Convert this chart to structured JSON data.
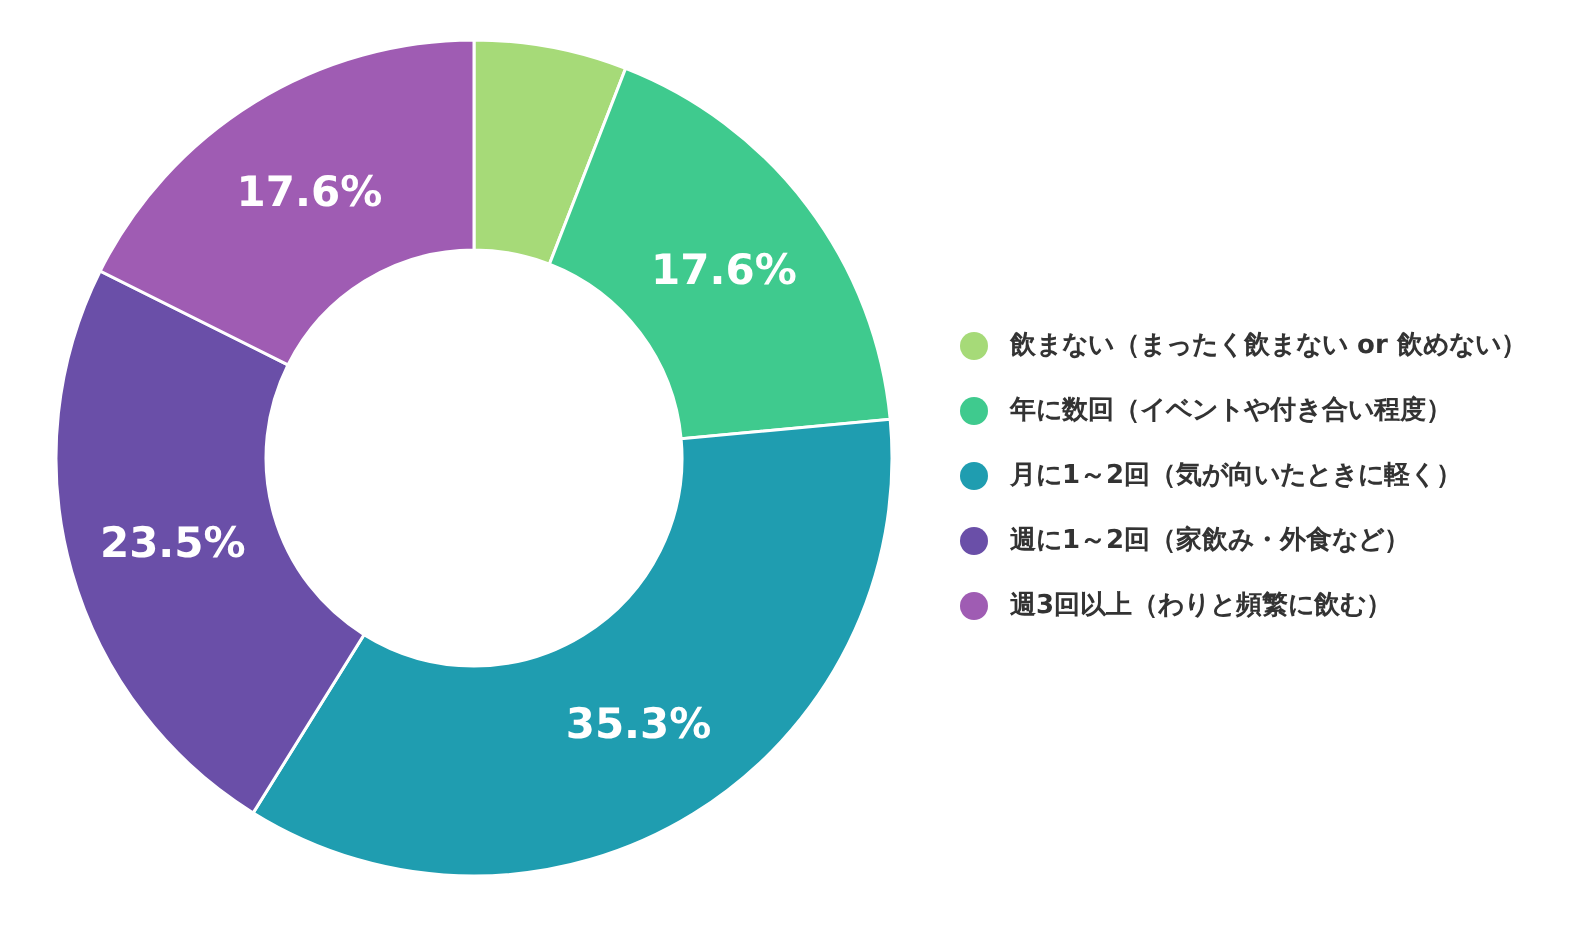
{
  "chart_data": {
    "type": "donut",
    "categories": [
      "飲まない（まったく飲まない or 飲めない）",
      "年に数回（イベントや付き合い程度）",
      "月に1～2回（気が向いたときに軽く）",
      "週に1～2回（家飲み・外食など）",
      "週3回以上（わりと頻繁に飲む）"
    ],
    "values": [
      5.9,
      17.6,
      35.3,
      23.5,
      17.6
    ],
    "value_labels": [
      null,
      "17.6%",
      "35.3%",
      "23.5%",
      "17.6%"
    ],
    "colors": [
      "#a6da78",
      "#3fca8e",
      "#1f9db0",
      "#6a4fa8",
      "#9f5cb3"
    ],
    "legend": "right"
  }
}
